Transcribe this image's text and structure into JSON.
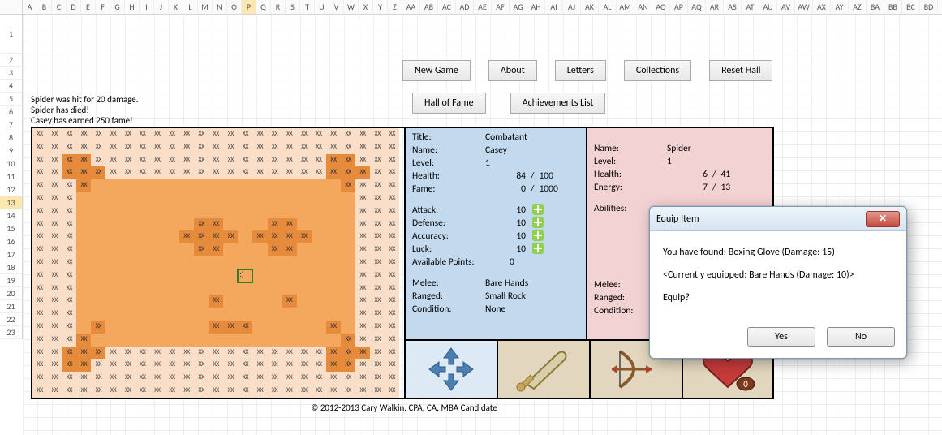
{
  "columns": [
    "A",
    "B",
    "C",
    "D",
    "E",
    "F",
    "G",
    "H",
    "I",
    "J",
    "K",
    "L",
    "M",
    "N",
    "O",
    "P",
    "Q",
    "R",
    "S",
    "T",
    "U",
    "V",
    "W",
    "X",
    "Y",
    "Z",
    "AA",
    "AB",
    "AC",
    "AD",
    "AE",
    "AF",
    "AG",
    "AH",
    "AI",
    "AJ",
    "AK",
    "AL",
    "AM",
    "AN",
    "AO",
    "AP",
    "AQ",
    "AR",
    "AS",
    "AT",
    "AU",
    "AV",
    "AW",
    "AX",
    "AY",
    "AZ",
    "BA",
    "BB",
    "BC",
    "BD",
    "BE",
    "BF",
    "BG",
    "BH",
    "BI",
    "BJ"
  ],
  "selectedCol": "P",
  "rows": [
    "1",
    "2",
    "3",
    "4",
    "5",
    "6",
    "7",
    "8",
    "9",
    "10",
    "11",
    "12",
    "13",
    "14",
    "15",
    "16",
    "17",
    "18",
    "19",
    "20",
    "21",
    "22",
    "23"
  ],
  "selectedRow": "13",
  "toolbar": {
    "new_game": "New Game",
    "about": "About",
    "letters": "Letters",
    "collections": "Collections",
    "reset_hall": "Reset Hall",
    "hall_of_fame": "Hall of Fame",
    "achievements": "Achievements List"
  },
  "log": {
    "l1": "Spider was hit for 20 damage.",
    "l2": "Spider has died!",
    "l3": "Casey has earned 250 fame!"
  },
  "map": {
    "cols": 25,
    "rows": 21,
    "cellText": "XX",
    "playerPos": [
      12,
      14
    ],
    "colors": {
      "light": "#fadec7",
      "dark": "#e68a3c",
      "mid": "#f4a85e"
    },
    "layout": [
      "lllllllllllllllllllllllll",
      "lllllllllllllllllllllllll",
      "llddllllllllllllllllddlll",
      "lldddllllllllllllllldddll",
      "llldmmmmmmmmmmmmmmmmmdlll",
      "lllmmmmmmmmmmmmmmmmmmmlll",
      "lllmmmmmmmmmmmmmmmmmmmlll",
      "lllmmmmmmmmddmmmddmmmmlll",
      "lllmmmmmmmddddmddddmmmlll",
      "lllmmmmmmmmddmmmddmmmmlll",
      "lllmmmmmmmmmmmmmmmmmmmlll",
      "lllmmmmmmmmmmmpmmmmmmmlll",
      "lllmmmmmmmmmmmmmmmmmmmlll",
      "lllmmmmmmmmmdmmmmdmmmmlll",
      "lllmmmmmmmmmmmmmmmmmmmlll",
      "lllmdmmmmmmmdddmmmmmdmlll",
      "llldmmmmmmmmmmmmmmmmmdlll",
      "lldddllllllllllllllldddll",
      "llddllllllllllllllllddlll",
      "lllllllllllllllllllllllll",
      "lllllllllllllllllllllllll"
    ]
  },
  "player": {
    "title_lbl": "Title:",
    "title": "Combatant",
    "name_lbl": "Name:",
    "name": "Casey",
    "level_lbl": "Level:",
    "level": "1",
    "health_lbl": "Health:",
    "health_cur": "84",
    "health_sep": "/",
    "health_max": "100",
    "fame_lbl": "Fame:",
    "fame_cur": "0",
    "fame_sep": "/",
    "fame_max": "1000",
    "attack_lbl": "Attack:",
    "attack": "10",
    "defense_lbl": "Defense:",
    "defense": "10",
    "accuracy_lbl": "Accuracy:",
    "accuracy": "10",
    "luck_lbl": "Luck:",
    "luck": "10",
    "ap_lbl": "Available Points:",
    "ap": "0",
    "melee_lbl": "Melee:",
    "melee": "Bare Hands",
    "ranged_lbl": "Ranged:",
    "ranged": "Small Rock",
    "cond_lbl": "Condition:",
    "cond": "None"
  },
  "enemy": {
    "name_lbl": "Name:",
    "name": "Spider",
    "level_lbl": "Level:",
    "level": "1",
    "health_lbl": "Health:",
    "health_cur": "6",
    "health_sep": "/",
    "health_max": "41",
    "energy_lbl": "Energy:",
    "energy_cur": "7",
    "energy_sep": "/",
    "energy_max": "13",
    "abilities_lbl": "Abilities:",
    "ab1": "None",
    "ab2": "None",
    "ab3": "None",
    "melee_lbl": "Melee:",
    "ranged_lbl": "Ranged:",
    "cond_lbl": "Condition:"
  },
  "actions": {
    "icons": [
      "move-arrows-icon",
      "sword-icon",
      "bow-icon",
      "heart-icon"
    ]
  },
  "dialog": {
    "title": "Equip Item",
    "line1": "You have found: Boxing Glove (Damage: 15)",
    "line2": "<Currently equipped: Bare Hands (Damage: 10)>",
    "line3": "Equip?",
    "yes": "Yes",
    "no": "No"
  },
  "footer": "© 2012-2013 Cary Walkin, CPA, CA, MBA Candidate",
  "palette": {
    "player_pane": "#c3d9ed",
    "enemy_pane": "#f3d2d4",
    "action_bg1": "#dde9f4",
    "action_bg2": "#e2d7be"
  }
}
